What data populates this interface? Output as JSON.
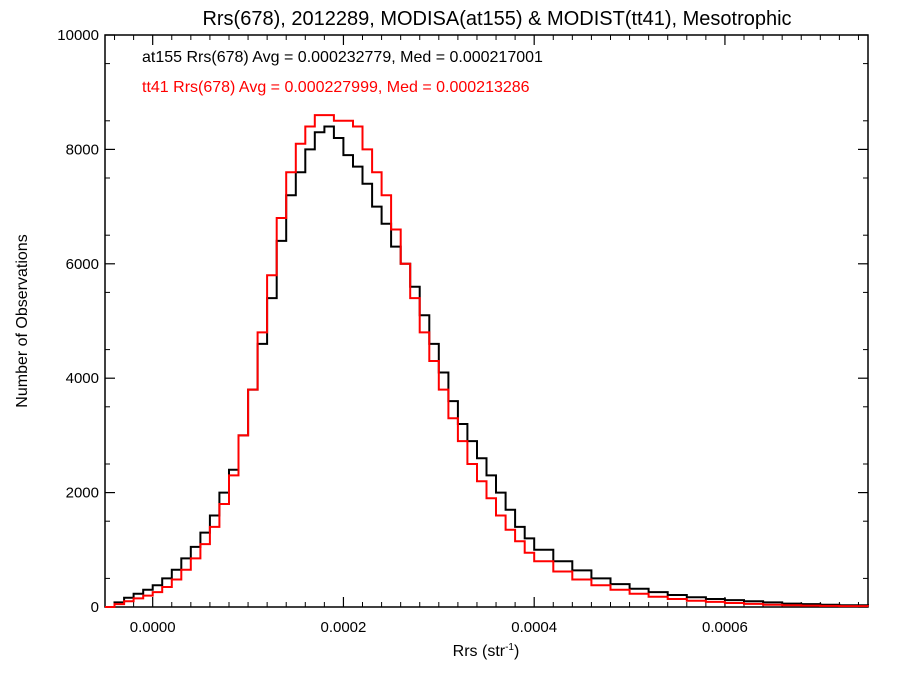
{
  "chart_data": {
    "type": "line",
    "step": true,
    "title": "Rrs(678), 2012289, MODISA(at155) & MODIST(tt41), Mesotrophic",
    "xlabel_main": "Rrs (str",
    "xlabel_sup": "-1",
    "xlabel_end": ")",
    "ylabel": "Number of Observations",
    "xlim": [
      -5e-05,
      0.00075
    ],
    "ylim": [
      0,
      10000
    ],
    "xticks": [
      0.0,
      0.0002,
      0.0004,
      0.0006
    ],
    "xtick_labels": [
      "0.0000",
      "0.0002",
      "0.0004",
      "0.0006"
    ],
    "yticks": [
      0,
      2000,
      4000,
      6000,
      8000,
      10000
    ],
    "ytick_labels": [
      "0",
      "2000",
      "4000",
      "6000",
      "8000",
      "10000"
    ],
    "grid": false,
    "annotations": [
      "at155 Rrs(678) Avg = 0.000232779, Med = 0.000217001",
      "tt41 Rrs(678) Avg = 0.000227999, Med = 0.000213286"
    ],
    "series": [
      {
        "color": "#000000",
        "x": [
          -5e-05,
          -4e-05,
          -3e-05,
          -2e-05,
          -1e-05,
          0.0,
          1e-05,
          2e-05,
          3e-05,
          4e-05,
          5e-05,
          6e-05,
          7e-05,
          8e-05,
          9e-05,
          0.0001,
          0.00011,
          0.00012,
          0.00013,
          0.00014,
          0.00015,
          0.00016,
          0.00017,
          0.00018,
          0.00019,
          0.0002,
          0.00021,
          0.00022,
          0.00023,
          0.00024,
          0.00025,
          0.00026,
          0.00027,
          0.00028,
          0.00029,
          0.0003,
          0.00031,
          0.00032,
          0.00033,
          0.00034,
          0.00035,
          0.00036,
          0.00037,
          0.00038,
          0.00039,
          0.0004,
          0.00042,
          0.00044,
          0.00046,
          0.00048,
          0.0005,
          0.00052,
          0.00054,
          0.00056,
          0.00058,
          0.0006,
          0.00062,
          0.00064,
          0.00066,
          0.00068,
          0.0007,
          0.00072,
          0.00075
        ],
        "y": [
          0,
          80,
          160,
          230,
          300,
          380,
          500,
          650,
          850,
          1050,
          1300,
          1600,
          2000,
          2400,
          3000,
          3800,
          4600,
          5400,
          6400,
          7200,
          7600,
          8000,
          8300,
          8400,
          8200,
          7900,
          7700,
          7400,
          7000,
          6700,
          6300,
          6000,
          5600,
          5100,
          4600,
          4100,
          3600,
          3200,
          2900,
          2600,
          2300,
          2000,
          1700,
          1400,
          1200,
          1000,
          800,
          640,
          500,
          400,
          320,
          260,
          210,
          170,
          140,
          120,
          100,
          80,
          60,
          50,
          40,
          30,
          20
        ]
      },
      {
        "color": "#ff0000",
        "x": [
          -5e-05,
          -4e-05,
          -3e-05,
          -2e-05,
          -1e-05,
          0.0,
          1e-05,
          2e-05,
          3e-05,
          4e-05,
          5e-05,
          6e-05,
          7e-05,
          8e-05,
          9e-05,
          0.0001,
          0.00011,
          0.00012,
          0.00013,
          0.00014,
          0.00015,
          0.00016,
          0.00017,
          0.00018,
          0.00019,
          0.0002,
          0.00021,
          0.00022,
          0.00023,
          0.00024,
          0.00025,
          0.00026,
          0.00027,
          0.00028,
          0.00029,
          0.0003,
          0.00031,
          0.00032,
          0.00033,
          0.00034,
          0.00035,
          0.00036,
          0.00037,
          0.00038,
          0.00039,
          0.0004,
          0.00042,
          0.00044,
          0.00046,
          0.00048,
          0.0005,
          0.00052,
          0.00054,
          0.00056,
          0.00058,
          0.0006,
          0.00062,
          0.00064,
          0.00066,
          0.00068,
          0.0007,
          0.00072,
          0.00075
        ],
        "y": [
          0,
          50,
          100,
          150,
          200,
          260,
          350,
          480,
          650,
          850,
          1100,
          1400,
          1800,
          2300,
          3000,
          3800,
          4800,
          5800,
          6800,
          7600,
          8100,
          8400,
          8600,
          8600,
          8500,
          8500,
          8400,
          8000,
          7600,
          7200,
          6600,
          6000,
          5400,
          4800,
          4300,
          3800,
          3300,
          2900,
          2500,
          2200,
          1900,
          1600,
          1350,
          1150,
          950,
          800,
          620,
          480,
          380,
          300,
          230,
          180,
          140,
          110,
          90,
          70,
          55,
          40,
          30,
          25,
          20,
          15,
          10
        ]
      }
    ]
  }
}
